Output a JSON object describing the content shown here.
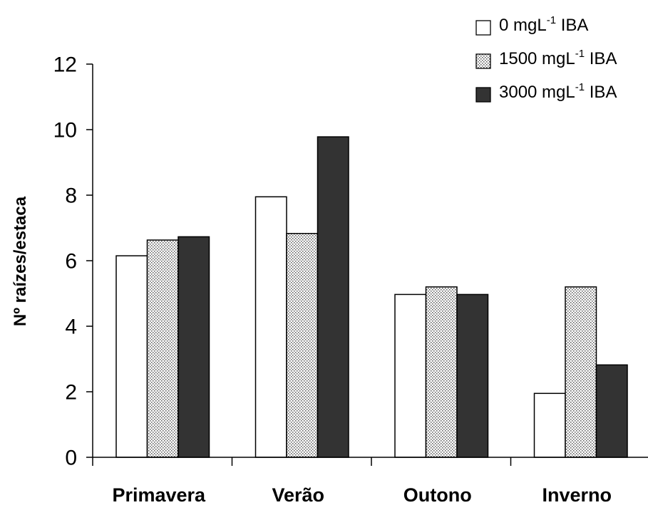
{
  "chart_data": {
    "type": "bar",
    "categories": [
      "Primavera",
      "Verão",
      "Outono",
      "Inverno"
    ],
    "ylabel": "Nº raízes/estaca",
    "xlabel": "",
    "ylim": [
      0,
      12
    ],
    "yticks": [
      0,
      2,
      4,
      6,
      8,
      10,
      12
    ],
    "grid": false,
    "legend_position": "top-right",
    "series": [
      {
        "name": "0 mgL-1 IBA",
        "legend": {
          "pre": "0 mgL",
          "sup": "-1",
          "post": " IBA"
        },
        "fill": "white",
        "color": "#ffffff",
        "values": [
          6.15,
          7.95,
          4.97,
          1.95
        ]
      },
      {
        "name": "1500 mgL-1 IBA",
        "legend": {
          "pre": "1500 mgL",
          "sup": "-1",
          "post": " IBA"
        },
        "fill": "dotted",
        "color": "#d9d9d9",
        "values": [
          6.63,
          6.83,
          5.2,
          5.2
        ]
      },
      {
        "name": "3000 mgL-1 IBA",
        "legend": {
          "pre": "3000 mgL",
          "sup": "-1",
          "post": " IBA"
        },
        "fill": "dark",
        "color": "#333333",
        "values": [
          6.73,
          9.78,
          4.97,
          2.82
        ]
      }
    ]
  }
}
